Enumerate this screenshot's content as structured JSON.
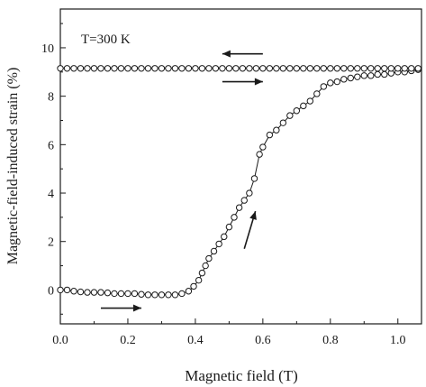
{
  "chart_data": {
    "type": "scatter",
    "annotation": "T=300 K",
    "xlabel": "Magnetic field (T)",
    "ylabel": "Magnetic-field-induced strain (%)",
    "xlim": [
      0.0,
      1.07
    ],
    "ylim": [
      -1.4,
      11.6
    ],
    "xticks": [
      0.0,
      0.2,
      0.4,
      0.6,
      0.8,
      1.0
    ],
    "xtick_labels": [
      "0.0",
      "0.2",
      "0.4",
      "0.6",
      "0.8",
      "1.0"
    ],
    "yticks": [
      0,
      2,
      4,
      6,
      8,
      10
    ],
    "ytick_labels": [
      "0",
      "2",
      "4",
      "6",
      "8",
      "10"
    ],
    "grid": false,
    "legend": "none",
    "series": [
      {
        "x": [
          0.0,
          0.02,
          0.04,
          0.06,
          0.08,
          0.1,
          0.12,
          0.14,
          0.16,
          0.18,
          0.2,
          0.22,
          0.24,
          0.26,
          0.28,
          0.3,
          0.32,
          0.34,
          0.36,
          0.38,
          0.395,
          0.41,
          0.42,
          0.43,
          0.44,
          0.455,
          0.47,
          0.485,
          0.5,
          0.515,
          0.53,
          0.545,
          0.56,
          0.575,
          0.59,
          0.6,
          0.62,
          0.64,
          0.66,
          0.68,
          0.7,
          0.72,
          0.74,
          0.76,
          0.78,
          0.8,
          0.82,
          0.84,
          0.86,
          0.88,
          0.9,
          0.92,
          0.94,
          0.96,
          0.98,
          1.0,
          1.02,
          1.04,
          1.06
        ],
        "y": [
          0.0,
          0.0,
          -0.05,
          -0.08,
          -0.1,
          -0.1,
          -0.1,
          -0.12,
          -0.15,
          -0.15,
          -0.15,
          -0.15,
          -0.18,
          -0.2,
          -0.2,
          -0.2,
          -0.2,
          -0.2,
          -0.15,
          -0.05,
          0.15,
          0.4,
          0.7,
          1.0,
          1.3,
          1.6,
          1.9,
          2.2,
          2.6,
          3.0,
          3.4,
          3.7,
          4.0,
          4.6,
          5.6,
          5.9,
          6.4,
          6.6,
          6.9,
          7.2,
          7.4,
          7.6,
          7.8,
          8.1,
          8.4,
          8.55,
          8.6,
          8.7,
          8.75,
          8.8,
          8.85,
          8.85,
          8.9,
          8.9,
          8.95,
          9.0,
          9.0,
          9.05,
          9.1
        ]
      },
      {
        "x": [
          1.06,
          1.04,
          1.02,
          1.0,
          0.98,
          0.96,
          0.94,
          0.92,
          0.9,
          0.88,
          0.86,
          0.84,
          0.82,
          0.8,
          0.78,
          0.76,
          0.74,
          0.72,
          0.7,
          0.68,
          0.66,
          0.64,
          0.62,
          0.6,
          0.58,
          0.56,
          0.54,
          0.52,
          0.5,
          0.48,
          0.46,
          0.44,
          0.42,
          0.4,
          0.38,
          0.36,
          0.34,
          0.32,
          0.3,
          0.28,
          0.26,
          0.24,
          0.22,
          0.2,
          0.18,
          0.16,
          0.14,
          0.12,
          0.1,
          0.08,
          0.06,
          0.04,
          0.02,
          0.0
        ],
        "y": [
          9.15,
          9.15,
          9.15,
          9.15,
          9.15,
          9.15,
          9.15,
          9.15,
          9.15,
          9.15,
          9.15,
          9.15,
          9.15,
          9.15,
          9.15,
          9.15,
          9.15,
          9.15,
          9.15,
          9.15,
          9.15,
          9.15,
          9.15,
          9.15,
          9.15,
          9.15,
          9.15,
          9.15,
          9.15,
          9.15,
          9.15,
          9.15,
          9.15,
          9.15,
          9.15,
          9.15,
          9.15,
          9.15,
          9.15,
          9.15,
          9.15,
          9.15,
          9.15,
          9.15,
          9.15,
          9.15,
          9.15,
          9.15,
          9.15,
          9.15,
          9.15,
          9.15,
          9.15,
          9.15
        ]
      }
    ]
  }
}
